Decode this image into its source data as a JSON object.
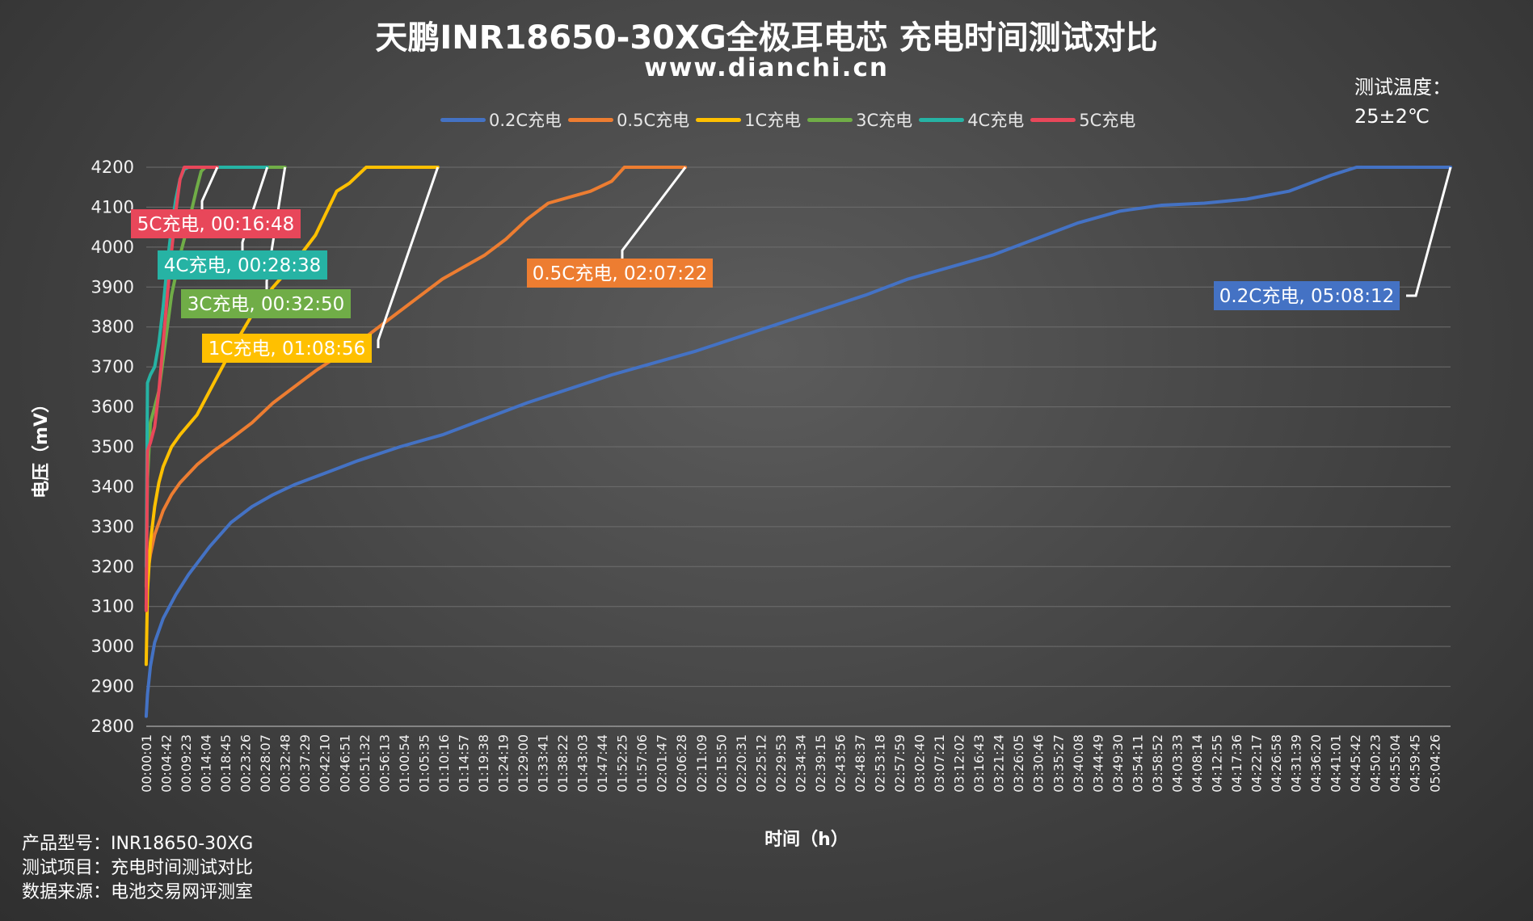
{
  "title": "天鹏INR18650-30XG全极耳电芯 充电时间测试对比",
  "subtitle": "www.dianchi.cn",
  "temperature": {
    "line1": "测试温度：",
    "line2": "25±2℃"
  },
  "footer": {
    "model": "产品型号：INR18650-30XG",
    "item": "测试项目：充电时间测试对比",
    "source": "数据来源：电池交易网评测室"
  },
  "chart_data": {
    "type": "line",
    "ylabel": "电压（mV）",
    "xlabel": "时间（h）",
    "ylim": [
      2800,
      4200
    ],
    "yticks": [
      2800,
      2900,
      3000,
      3100,
      3200,
      3300,
      3400,
      3500,
      3600,
      3700,
      3800,
      3900,
      4000,
      4100,
      4200
    ],
    "xticks": [
      "00:00:01",
      "00:04:42",
      "00:09:23",
      "00:14:04",
      "00:18:45",
      "00:23:26",
      "00:28:07",
      "00:32:48",
      "00:37:29",
      "00:42:10",
      "00:46:51",
      "00:51:32",
      "00:56:13",
      "01:00:54",
      "01:05:35",
      "01:10:16",
      "01:14:57",
      "01:19:38",
      "01:24:19",
      "01:29:00",
      "01:33:41",
      "01:38:22",
      "01:43:03",
      "01:47:44",
      "01:52:25",
      "01:57:06",
      "02:01:47",
      "02:06:28",
      "02:11:09",
      "02:15:50",
      "02:20:31",
      "02:25:12",
      "02:29:53",
      "02:34:34",
      "02:39:15",
      "02:43:56",
      "02:48:37",
      "02:53:18",
      "02:57:59",
      "03:02:40",
      "03:07:21",
      "03:12:02",
      "03:16:43",
      "03:21:24",
      "03:26:05",
      "03:30:46",
      "03:35:27",
      "03:40:08",
      "03:44:49",
      "03:49:30",
      "03:54:11",
      "03:58:52",
      "04:03:33",
      "04:08:14",
      "04:12:55",
      "04:17:36",
      "04:22:17",
      "04:26:58",
      "04:31:39",
      "04:36:20",
      "04:41:01",
      "04:45:42",
      "04:50:23",
      "04:55:04",
      "04:59:45",
      "05:04:26"
    ],
    "x_unit": "min",
    "grid": true,
    "legend_position": "top",
    "series": [
      {
        "name": "0.2C充电",
        "color": "#4472c4",
        "x": [
          0,
          0.3,
          1,
          2,
          4,
          7,
          10,
          15,
          20,
          25,
          30,
          35,
          40,
          45,
          50,
          60,
          70,
          80,
          90,
          100,
          110,
          120,
          130,
          140,
          150,
          160,
          170,
          180,
          190,
          200,
          210,
          220,
          230,
          240,
          250,
          260,
          270,
          280,
          286,
          290,
          295,
          300,
          305,
          308.2
        ],
        "y": [
          2825,
          2880,
          2950,
          3010,
          3070,
          3130,
          3180,
          3250,
          3310,
          3350,
          3380,
          3405,
          3425,
          3445,
          3465,
          3500,
          3530,
          3570,
          3610,
          3645,
          3680,
          3710,
          3740,
          3775,
          3810,
          3845,
          3880,
          3920,
          3950,
          3980,
          4020,
          4060,
          4090,
          4105,
          4110,
          4120,
          4140,
          4180,
          4200,
          4200,
          4200,
          4200,
          4200,
          4200
        ],
        "callout": "0.2C充电, 05:08:12"
      },
      {
        "name": "0.5C充电",
        "color": "#ed7d31",
        "x": [
          0,
          0.3,
          1,
          2,
          4,
          6,
          8,
          12,
          16,
          20,
          25,
          30,
          40,
          50,
          60,
          70,
          80,
          85,
          90,
          95,
          100,
          105,
          110,
          113,
          116,
          120,
          125,
          127.4
        ],
        "y": [
          3100,
          3180,
          3230,
          3280,
          3340,
          3380,
          3410,
          3455,
          3490,
          3520,
          3560,
          3610,
          3690,
          3760,
          3840,
          3920,
          3980,
          4020,
          4070,
          4110,
          4125,
          4140,
          4165,
          4200,
          4200,
          4200,
          4200,
          4200
        ],
        "callout": "0.5C充电, 02:07:22"
      },
      {
        "name": "1C充电",
        "color": "#ffc000",
        "x": [
          0,
          0.3,
          1,
          2,
          3,
          4,
          6,
          8,
          12,
          16,
          20,
          25,
          30,
          35,
          40,
          45,
          48,
          52,
          56,
          60,
          64,
          66,
          68.9
        ],
        "y": [
          2955,
          3140,
          3260,
          3350,
          3410,
          3450,
          3500,
          3530,
          3580,
          3660,
          3740,
          3830,
          3900,
          3960,
          4030,
          4140,
          4160,
          4200,
          4200,
          4200,
          4200,
          4200,
          4200
        ],
        "callout": "1C充电, 01:08:56"
      },
      {
        "name": "3C充电",
        "color": "#70ad47",
        "x": [
          0,
          0.3,
          1,
          2,
          3,
          4,
          5,
          6,
          8,
          10,
          12,
          13,
          14,
          16,
          18,
          20,
          22,
          24,
          26,
          28,
          30,
          31,
          32.8
        ],
        "y": [
          3150,
          3420,
          3560,
          3600,
          3640,
          3720,
          3800,
          3880,
          3980,
          4060,
          4150,
          4190,
          4200,
          4200,
          4200,
          4200,
          4200,
          4200,
          4200,
          4200,
          4200,
          4200,
          4200
        ],
        "callout": "3C充电, 00:32:50"
      },
      {
        "name": "4C充电",
        "color": "#26b3a4",
        "x": [
          0,
          0.3,
          1,
          2,
          3,
          4,
          5,
          6,
          7,
          8,
          9,
          10,
          11,
          12,
          14,
          16,
          18,
          20,
          22,
          24,
          26,
          28.6
        ],
        "y": [
          3200,
          3660,
          3680,
          3700,
          3760,
          3850,
          3960,
          4050,
          4120,
          4170,
          4195,
          4200,
          4200,
          4200,
          4200,
          4200,
          4200,
          4200,
          4200,
          4200,
          4200,
          4200
        ],
        "callout": "4C充电, 00:28:38"
      },
      {
        "name": "5C充电",
        "color": "#e8475a",
        "x": [
          0,
          0.3,
          1,
          2,
          3,
          4,
          5,
          6,
          7,
          8,
          9,
          10,
          12,
          14,
          16,
          16.8
        ],
        "y": [
          3090,
          3490,
          3510,
          3550,
          3640,
          3760,
          3880,
          3990,
          4090,
          4170,
          4200,
          4200,
          4200,
          4200,
          4200,
          4200
        ],
        "callout": "5C充电, 00:16:48"
      }
    ]
  }
}
